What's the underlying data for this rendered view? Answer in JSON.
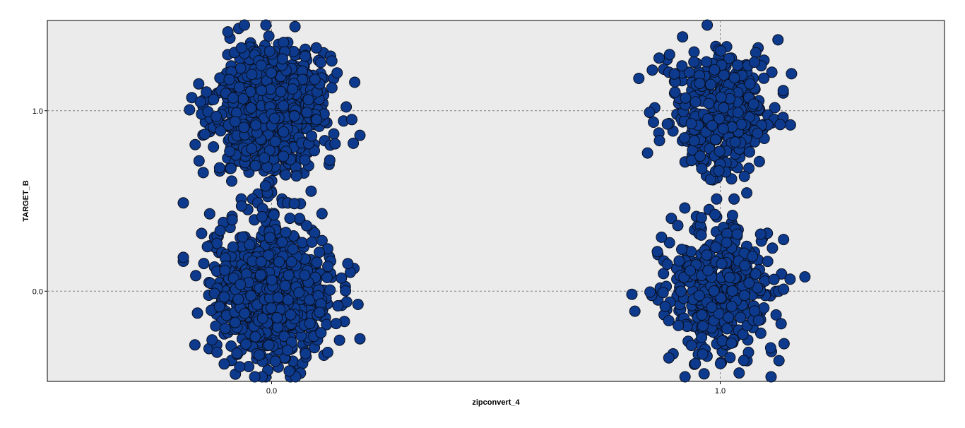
{
  "chart_data": {
    "type": "scatter",
    "title": "",
    "xlabel": "zipconvert_4",
    "ylabel": "TARGET_B",
    "xlim": [
      -0.5,
      1.5
    ],
    "ylim": [
      -0.5,
      1.5
    ],
    "x_ticks": [
      {
        "value": 0.0,
        "label": "0.0"
      },
      {
        "value": 1.0,
        "label": "1.0"
      }
    ],
    "y_ticks": [
      {
        "value": 0.0,
        "label": "0.0"
      },
      {
        "value": 1.0,
        "label": "1.0"
      }
    ],
    "grid": "dashed reference lines at 0.0 and 1.0",
    "jitter": "points jittered around discrete values (0,0), (0,1), (1,0), (1,1)",
    "series": [
      {
        "color": "#0d3a8c",
        "edge_color": "#0a0f1f",
        "groups": [
          {
            "x": 0.0,
            "y": 1.0,
            "approx_points": 900
          },
          {
            "x": 0.0,
            "y": 0.0,
            "approx_points": 900
          },
          {
            "x": 1.0,
            "y": 1.0,
            "approx_points": 420
          },
          {
            "x": 1.0,
            "y": 0.0,
            "approx_points": 420
          }
        ]
      }
    ]
  },
  "colors": {
    "plot_background": "#ebebeb",
    "point_fill": "#0d3a8c",
    "point_edge": "#0a0f1f",
    "gridline": "#808080"
  }
}
